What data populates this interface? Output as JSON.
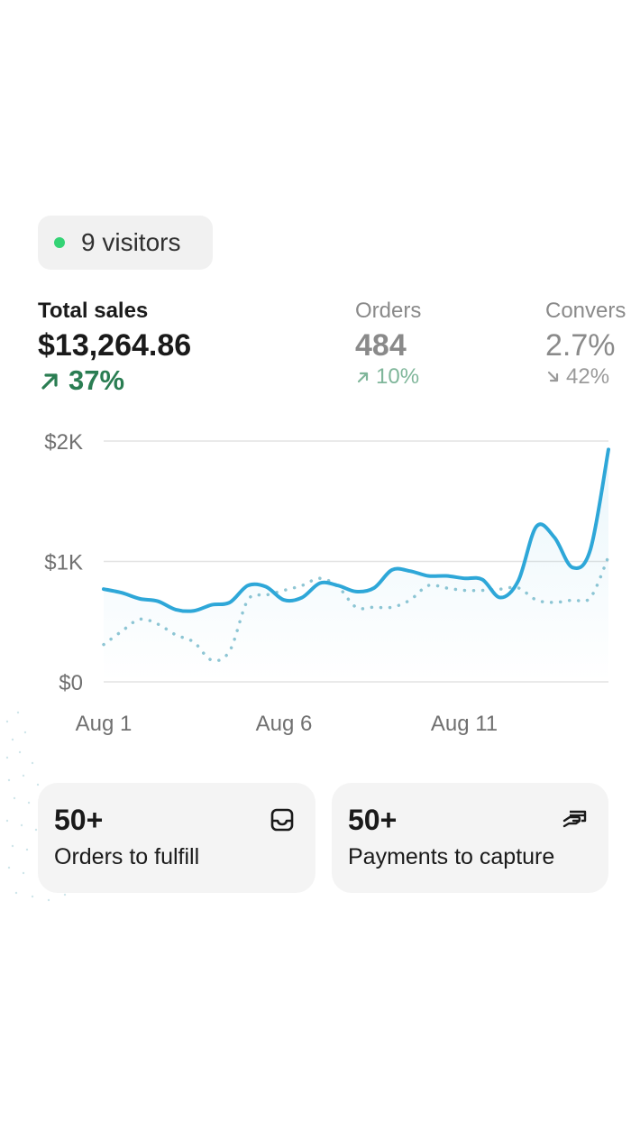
{
  "live_visitors": {
    "label": "9 visitors",
    "dot_color": "#34d375"
  },
  "metrics": {
    "total_sales": {
      "label": "Total sales",
      "value": "$13,264.86",
      "delta": "37%",
      "direction": "up"
    },
    "orders": {
      "label": "Orders",
      "value": "484",
      "delta": "10%",
      "direction": "up"
    },
    "conversion": {
      "label": "Convers",
      "value": "2.7%",
      "delta": "42%",
      "direction": "down"
    }
  },
  "chart_data": {
    "type": "line",
    "y_ticks": [
      "$2K",
      "$1K",
      "$0"
    ],
    "x_ticks": [
      "Aug 1",
      "Aug 6",
      "Aug 11"
    ],
    "ylim": [
      0,
      2000
    ],
    "x": [
      1,
      1.5,
      2,
      2.5,
      3,
      3.5,
      4,
      4.5,
      5,
      5.5,
      6,
      6.5,
      7,
      7.5,
      8,
      8.5,
      9,
      9.5,
      10,
      10.5,
      11,
      11.5,
      12,
      12.5,
      13,
      13.5,
      14,
      14.5,
      15
    ],
    "series": [
      {
        "style": "solid",
        "color": "#2ea7d8",
        "values": [
          770,
          740,
          690,
          670,
          600,
          590,
          640,
          660,
          800,
          790,
          680,
          700,
          820,
          800,
          750,
          780,
          930,
          920,
          880,
          880,
          860,
          850,
          700,
          840,
          1290,
          1200,
          950,
          1100,
          1930
        ]
      },
      {
        "style": "dotted",
        "color": "#8fc6d4",
        "values": [
          310,
          420,
          520,
          480,
          390,
          330,
          180,
          260,
          680,
          720,
          760,
          800,
          860,
          790,
          620,
          620,
          620,
          680,
          800,
          780,
          760,
          760,
          770,
          780,
          680,
          660,
          680,
          700,
          1040
        ]
      }
    ]
  },
  "cards": [
    {
      "count": "50+",
      "label": "Orders to fulfill",
      "icon": "inbox-icon"
    },
    {
      "count": "50+",
      "label": "Payments to capture",
      "icon": "hand-card-icon"
    }
  ]
}
